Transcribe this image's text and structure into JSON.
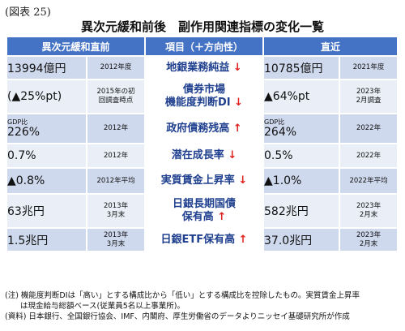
{
  "figure_label": "(図表 25)",
  "title": "異次元緩和前後　副作用関連指標の変化一覧",
  "headers": {
    "before": "異次元緩和直前",
    "item": "項目（＋方向性）",
    "recent": "直近"
  },
  "rows": [
    {
      "before_value": "13994億円",
      "before_note": "2012年度",
      "item_lines": [
        "地銀業務純益"
      ],
      "arrow": "↓",
      "recent_value": "10785億円",
      "recent_note": "2021年度"
    },
    {
      "before_value": "(▲25%pt)",
      "before_note": "2015年の初\n回調査時点",
      "item_lines": [
        "債券市場",
        "機能度判断DI"
      ],
      "arrow": "↓",
      "recent_value": "▲64%pt",
      "recent_note": "2023年\n2月調査"
    },
    {
      "before_prefix": "GDP比",
      "before_value": "226%",
      "before_note": "2012年",
      "item_lines": [
        "政府債務残高"
      ],
      "arrow": "↑",
      "recent_prefix": "GDP比",
      "recent_value": "264%",
      "recent_note": "2022年"
    },
    {
      "before_value": "0.7%",
      "before_note": "2012年",
      "item_lines": [
        "潜在成長率"
      ],
      "arrow": "↓",
      "recent_value": "0.5%",
      "recent_note": "2022年"
    },
    {
      "before_value": "▲0.8%",
      "before_note": "2012年平均",
      "item_lines": [
        "実質賃金上昇率"
      ],
      "arrow": "↓",
      "recent_value": "▲1.0%",
      "recent_note": "2022年平均"
    },
    {
      "before_value": "63兆円",
      "before_note": "2013年\n3月末",
      "item_lines": [
        "日銀長期国債",
        "保有高"
      ],
      "arrow": "↑",
      "recent_value": "582兆円",
      "recent_note": "2023年\n2月末"
    },
    {
      "before_value": "1.5兆円",
      "before_note": "2013年\n3月末",
      "item_lines": [
        "日銀ETF保有高"
      ],
      "arrow": "↑",
      "recent_value": "37.0兆円",
      "recent_note": "2023年\n2月末"
    }
  ],
  "notes": [
    "(注) 機能度判断DIは「高い」とする構成比から「低い」とする構成比を控除したもの。実質賃金上昇率",
    "　　は現金給与総額ベース(従業員5名以上事業所)。",
    "(資料) 日本銀行、全国銀行協会、IMF、内閣府、厚生労働省のデータよりニッセイ基礎研究所が作成"
  ]
}
